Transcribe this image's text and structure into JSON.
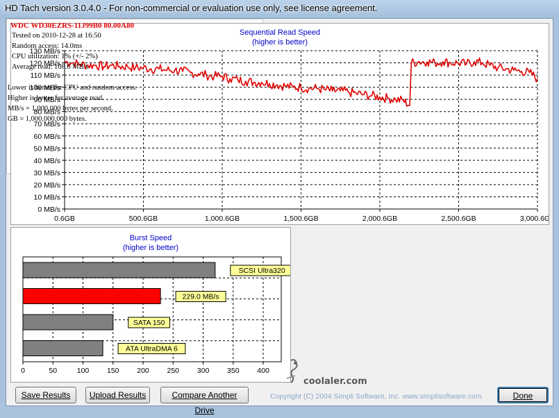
{
  "window": {
    "title": "HD Tach version 3.0.4.0  - For non-commercial or evaluation use only, see license agreement."
  },
  "sequential_chart": {
    "title_line1": "Sequential Read Speed",
    "title_line2": "(higher is better)"
  },
  "burst_chart": {
    "title_line1": "Burst Speed",
    "title_line2": "(higher is better)"
  },
  "chart_data": [
    {
      "type": "line",
      "title": "Sequential Read Speed (higher is better)",
      "xlabel": "",
      "ylabel": "",
      "xlim": [
        0.6,
        3000.6
      ],
      "ylim": [
        0,
        130
      ],
      "grid": true,
      "x_tick_labels": [
        "0.6GB",
        "500.6GB",
        "1,000.6GB",
        "1,500.6GB",
        "2,000.6GB",
        "2,500.6GB",
        "3,000.6GB"
      ],
      "y_tick_labels": [
        "0 MB/s",
        "10 MB/s",
        "20 MB/s",
        "30 MB/s",
        "40 MB/s",
        "50 MB/s",
        "60 MB/s",
        "70 MB/s",
        "80 MB/s",
        "90 MB/s",
        "100 MB/s",
        "110 MB/s",
        "120 MB/s",
        "130 MB/s"
      ],
      "series": [
        {
          "color": "#e00000",
          "x": [
            0.6,
            50,
            100,
            150,
            200,
            250,
            300,
            350,
            400,
            450,
            500,
            550,
            600,
            650,
            700,
            750,
            800,
            850,
            900,
            950,
            1000,
            1050,
            1100,
            1150,
            1200,
            1250,
            1300,
            1350,
            1400,
            1450,
            1500,
            1550,
            1600,
            1650,
            1700,
            1750,
            1800,
            1850,
            1900,
            1950,
            2000,
            2050,
            2100,
            2150,
            2190,
            2200,
            2250,
            2300,
            2350,
            2400,
            2450,
            2500,
            2550,
            2600,
            2650,
            2700,
            2750,
            2800,
            2850,
            2900,
            2950,
            3000.6
          ],
          "values": [
            121,
            120,
            119,
            118,
            118,
            117,
            118,
            117,
            117,
            116,
            116,
            115,
            115,
            114,
            114,
            113,
            112,
            111,
            110,
            109,
            109,
            107,
            106,
            105,
            104,
            104,
            103,
            102,
            101,
            100,
            100,
            99,
            99,
            98,
            97,
            97,
            96,
            95,
            94,
            93,
            92,
            91,
            90,
            89,
            85,
            120,
            121,
            121,
            120,
            121,
            120,
            120,
            119,
            121,
            120,
            118,
            116,
            115,
            114,
            113,
            112,
            107
          ]
        }
      ]
    },
    {
      "type": "bar",
      "orientation": "horizontal",
      "title": "Burst Speed (higher is better)",
      "categories": [
        "SCSI Ultra320",
        "229.0 MB/s",
        "SATA 150",
        "ATA UltraDMA 6"
      ],
      "values": [
        320,
        229,
        150,
        133
      ],
      "bar_colors": [
        "#808080",
        "#ff0000",
        "#808080",
        "#808080"
      ],
      "xlim": [
        0,
        430
      ],
      "x_tick_labels": [
        "0",
        "50",
        "100",
        "150",
        "200",
        "250",
        "300",
        "350",
        "400"
      ],
      "grid": true
    }
  ],
  "info": {
    "drive": "WDC  WD30EZRS-11J99B0 80.00A80",
    "tested_on": "Tested on 2010-12-28 at 16:50",
    "random_access": "Random access: 14.0ms",
    "cpu_utilization": "CPU utilization: 1% (+/- 2%)",
    "average_read": "Average read: 108.6 MB/s",
    "note1": "Lower is better for CPU and random access.",
    "note2": "Higher is better for average read.",
    "note3": "MB/s = 1,000,000 bytes per second.",
    "note4": "GB = 1,000,000,000 bytes."
  },
  "buttons": {
    "save": "Save Results",
    "upload": "Upload Results",
    "compare": "Compare Another Drive",
    "done": "Done"
  },
  "footer": {
    "copyright": "Copyright (C) 2004 Simpli Software, Inc. www.simplisoftware.com"
  },
  "watermark": {
    "text": "coolaler.com"
  }
}
